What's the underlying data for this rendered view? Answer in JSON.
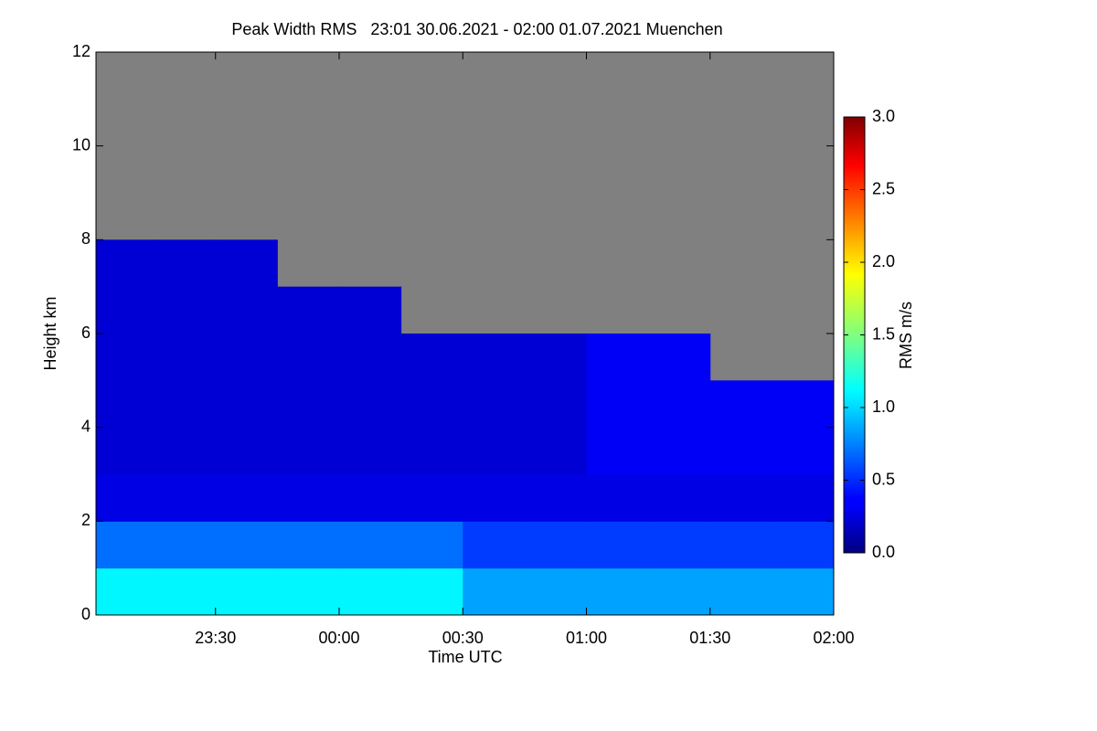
{
  "chart_data": {
    "type": "heatmap",
    "title": "Peak Width RMS   23:01 30.06.2021 - 02:00 01.07.2021 Muenchen",
    "x_label": "Time UTC",
    "y_label": "Height km",
    "colorbar_label": "RMS m/s",
    "x": [
      1381,
      1395,
      1410,
      1425,
      1440,
      1455,
      1470,
      1485,
      1500,
      1515,
      1530,
      1545,
      1560
    ],
    "y": [
      0,
      1,
      2,
      3,
      4,
      5,
      6,
      7,
      8,
      9,
      10,
      11,
      12
    ],
    "z": [
      [
        1.1,
        1.1,
        1.1,
        1.1,
        1.1,
        1.1,
        0.85,
        0.85,
        0.85,
        0.85,
        0.85,
        0.85
      ],
      [
        0.7,
        0.7,
        0.7,
        0.7,
        0.7,
        0.7,
        0.55,
        0.55,
        0.55,
        0.55,
        0.55,
        0.55
      ],
      [
        0.3,
        0.3,
        0.3,
        0.3,
        0.3,
        0.3,
        0.3,
        0.3,
        0.3,
        0.3,
        0.3,
        0.3
      ],
      [
        0.25,
        0.25,
        0.25,
        0.25,
        0.25,
        0.25,
        0.25,
        0.25,
        0.35,
        0.35,
        0.35,
        0.35
      ],
      [
        0.25,
        0.25,
        0.25,
        0.25,
        0.25,
        0.25,
        0.25,
        0.25,
        0.35,
        0.35,
        0.35,
        0.35
      ],
      [
        0.25,
        0.25,
        0.25,
        0.25,
        0.25,
        0.25,
        0.25,
        0.25,
        0.35,
        0.35,
        null,
        null
      ],
      [
        0.25,
        0.25,
        0.25,
        0.25,
        0.25,
        null,
        null,
        null,
        null,
        null,
        null,
        null
      ],
      [
        0.25,
        0.25,
        0.25,
        null,
        null,
        null,
        null,
        null,
        null,
        null,
        null,
        null
      ],
      [
        null,
        null,
        null,
        null,
        null,
        null,
        null,
        null,
        null,
        null,
        null,
        null
      ],
      [
        null,
        null,
        null,
        null,
        null,
        null,
        null,
        null,
        null,
        null,
        null,
        null
      ],
      [
        null,
        null,
        null,
        null,
        null,
        null,
        null,
        null,
        null,
        null,
        null,
        null
      ],
      [
        null,
        null,
        null,
        null,
        null,
        null,
        null,
        null,
        null,
        null,
        null,
        null
      ]
    ],
    "xlim": [
      1381,
      1560
    ],
    "xticks": [
      {
        "value": 1410,
        "label": "23:30"
      },
      {
        "value": 1440,
        "label": "00:00"
      },
      {
        "value": 1470,
        "label": "00:30"
      },
      {
        "value": 1500,
        "label": "01:00"
      },
      {
        "value": 1530,
        "label": "01:30"
      },
      {
        "value": 1560,
        "label": "02:00"
      }
    ],
    "ylim": [
      0,
      12
    ],
    "yticks": [
      0,
      2,
      4,
      6,
      8,
      10,
      12
    ],
    "zlim": [
      0,
      3
    ],
    "zticks": [
      {
        "value": 0,
        "label": "0.0"
      },
      {
        "value": 0.5,
        "label": "0.5"
      },
      {
        "value": 1,
        "label": "1.0"
      },
      {
        "value": 1.5,
        "label": "1.5"
      },
      {
        "value": 2,
        "label": "2.0"
      },
      {
        "value": 2.5,
        "label": "2.5"
      },
      {
        "value": 3,
        "label": "3.0"
      }
    ],
    "colormap": "jet",
    "no_data_color": "#808080"
  }
}
